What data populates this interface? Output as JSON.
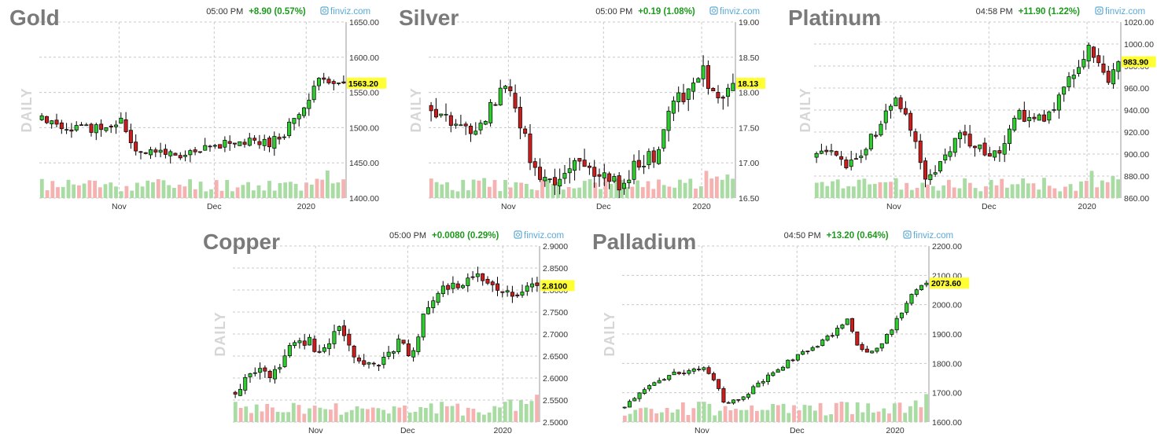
{
  "brand": "finviz.com",
  "y_axis_label": "DAILY",
  "chart_data": [
    {
      "type": "candlestick",
      "title": "Gold",
      "time": "05:00 PM",
      "change": "+8.90 (0.57%)",
      "last_price_label": "1563.20",
      "last_price": 1563.2,
      "ylim": [
        1400,
        1650
      ],
      "y_ticks": [
        1400,
        1450,
        1500,
        1550,
        1600,
        1650
      ],
      "y_tick_labels": [
        "1400.00",
        "1450.00",
        "1500.00",
        "1550.00",
        "1600.00",
        "1650.00"
      ],
      "x_labels": [
        "Nov",
        "Dec",
        "2020"
      ],
      "x_label_positions": [
        0.26,
        0.57,
        0.87
      ],
      "start_price": 1510,
      "end_price": 1563.2,
      "wave": 8,
      "anchors": [
        [
          0,
          1510
        ],
        [
          0.05,
          1500
        ],
        [
          0.18,
          1500
        ],
        [
          0.26,
          1512
        ],
        [
          0.31,
          1470
        ],
        [
          0.38,
          1465
        ],
        [
          0.5,
          1460
        ],
        [
          0.56,
          1470
        ],
        [
          0.62,
          1480
        ],
        [
          0.7,
          1478
        ],
        [
          0.78,
          1482
        ],
        [
          0.84,
          1515
        ],
        [
          0.89,
          1535
        ],
        [
          0.92,
          1580
        ],
        [
          0.95,
          1570
        ],
        [
          0.97,
          1555
        ],
        [
          1,
          1563.2
        ]
      ]
    },
    {
      "type": "candlestick",
      "title": "Silver",
      "time": "05:00 PM",
      "change": "+0.19 (1.08%)",
      "last_price_label": "18.13",
      "last_price": 18.13,
      "ylim": [
        16.5,
        19
      ],
      "y_ticks": [
        16.5,
        17,
        17.5,
        18,
        18.5,
        19
      ],
      "y_tick_labels": [
        "16.50",
        "17.00",
        "17.50",
        "18.00",
        "18.50",
        "19.00"
      ],
      "x_labels": [
        "Nov",
        "Dec",
        "2020"
      ],
      "x_label_positions": [
        0.26,
        0.57,
        0.89
      ],
      "start_price": 17.8,
      "end_price": 18.13,
      "wave": 0.12,
      "anchors": [
        [
          0,
          17.8
        ],
        [
          0.05,
          17.6
        ],
        [
          0.1,
          17.5
        ],
        [
          0.16,
          17.5
        ],
        [
          0.2,
          17.9
        ],
        [
          0.26,
          18.05
        ],
        [
          0.3,
          17.55
        ],
        [
          0.34,
          16.9
        ],
        [
          0.38,
          16.7
        ],
        [
          0.43,
          16.85
        ],
        [
          0.5,
          17.0
        ],
        [
          0.56,
          16.85
        ],
        [
          0.62,
          16.65
        ],
        [
          0.67,
          16.95
        ],
        [
          0.74,
          17.1
        ],
        [
          0.8,
          17.9
        ],
        [
          0.86,
          18.0
        ],
        [
          0.9,
          18.3
        ],
        [
          0.93,
          18.05
        ],
        [
          0.96,
          17.9
        ],
        [
          1,
          18.13
        ]
      ]
    },
    {
      "type": "candlestick",
      "title": "Platinum",
      "time": "04:58 PM",
      "change": "+11.90 (1.22%)",
      "last_price_label": "983.90",
      "last_price": 983.9,
      "ylim": [
        860,
        1020
      ],
      "y_ticks": [
        860,
        880,
        900,
        920,
        940,
        960,
        980,
        1000,
        1020
      ],
      "y_tick_labels": [
        "860.00",
        "880.00",
        "900.00",
        "920.00",
        "940.00",
        "960.00",
        "980.00",
        "1000.00",
        "1020.00"
      ],
      "x_labels": [
        "Nov",
        "Dec",
        "2020"
      ],
      "x_label_positions": [
        0.26,
        0.57,
        0.89
      ],
      "start_price": 897,
      "end_price": 983.9,
      "wave": 6,
      "anchors": [
        [
          0,
          897
        ],
        [
          0.05,
          900
        ],
        [
          0.12,
          890
        ],
        [
          0.17,
          910
        ],
        [
          0.22,
          930
        ],
        [
          0.26,
          955
        ],
        [
          0.3,
          935
        ],
        [
          0.34,
          900
        ],
        [
          0.37,
          875
        ],
        [
          0.42,
          900
        ],
        [
          0.48,
          915
        ],
        [
          0.54,
          905
        ],
        [
          0.6,
          900
        ],
        [
          0.66,
          940
        ],
        [
          0.72,
          930
        ],
        [
          0.77,
          935
        ],
        [
          0.82,
          960
        ],
        [
          0.87,
          975
        ],
        [
          0.91,
          1000
        ],
        [
          0.93,
          980
        ],
        [
          0.96,
          965
        ],
        [
          1,
          983.9
        ]
      ]
    },
    {
      "type": "candlestick",
      "title": "Copper",
      "time": "05:00 PM",
      "change": "+0.0080 (0.29%)",
      "last_price_label": "2.8100",
      "last_price": 2.81,
      "ylim": [
        2.5,
        2.9
      ],
      "y_ticks": [
        2.5,
        2.55,
        2.6,
        2.65,
        2.7,
        2.75,
        2.8,
        2.85,
        2.9
      ],
      "y_tick_labels": [
        "2.5000",
        "2.5500",
        "2.6000",
        "2.6500",
        "2.7000",
        "2.7500",
        "2.8000",
        "2.8500",
        "2.9000"
      ],
      "x_labels": [
        "Nov",
        "Dec",
        "2020"
      ],
      "x_label_positions": [
        0.27,
        0.57,
        0.88
      ],
      "start_price": 2.57,
      "end_price": 2.81,
      "wave": 0.012,
      "anchors": [
        [
          0,
          2.57
        ],
        [
          0.06,
          2.62
        ],
        [
          0.12,
          2.6
        ],
        [
          0.17,
          2.66
        ],
        [
          0.24,
          2.69
        ],
        [
          0.28,
          2.65
        ],
        [
          0.34,
          2.71
        ],
        [
          0.4,
          2.64
        ],
        [
          0.46,
          2.62
        ],
        [
          0.52,
          2.66
        ],
        [
          0.55,
          2.69
        ],
        [
          0.58,
          2.63
        ],
        [
          0.63,
          2.76
        ],
        [
          0.68,
          2.8
        ],
        [
          0.74,
          2.81
        ],
        [
          0.8,
          2.84
        ],
        [
          0.86,
          2.8
        ],
        [
          0.9,
          2.79
        ],
        [
          0.95,
          2.8
        ],
        [
          1,
          2.81
        ]
      ]
    },
    {
      "type": "candlestick",
      "title": "Palladium",
      "time": "04:50 PM",
      "change": "+13.20 (0.64%)",
      "last_price_label": "2073.60",
      "last_price": 2073.6,
      "ylim": [
        1600,
        2200
      ],
      "y_ticks": [
        1600,
        1700,
        1800,
        1900,
        2000,
        2100,
        2200
      ],
      "y_tick_labels": [
        "1600.00",
        "1700.00",
        "1800.00",
        "1900.00",
        "2000.00",
        "2100.00",
        "2200.00"
      ],
      "x_labels": [
        "Nov",
        "Dec",
        "2020"
      ],
      "x_label_positions": [
        0.26,
        0.57,
        0.89
      ],
      "start_price": 1650,
      "end_price": 2073.6,
      "wave": 8,
      "anchors": [
        [
          0,
          1650
        ],
        [
          0.08,
          1730
        ],
        [
          0.18,
          1770
        ],
        [
          0.26,
          1780
        ],
        [
          0.3,
          1740
        ],
        [
          0.33,
          1660
        ],
        [
          0.4,
          1690
        ],
        [
          0.48,
          1760
        ],
        [
          0.55,
          1810
        ],
        [
          0.62,
          1850
        ],
        [
          0.69,
          1900
        ],
        [
          0.74,
          1950
        ],
        [
          0.77,
          1870
        ],
        [
          0.8,
          1830
        ],
        [
          0.85,
          1870
        ],
        [
          0.88,
          1910
        ],
        [
          0.92,
          1980
        ],
        [
          0.96,
          2050
        ],
        [
          1,
          2073.6
        ]
      ]
    }
  ]
}
